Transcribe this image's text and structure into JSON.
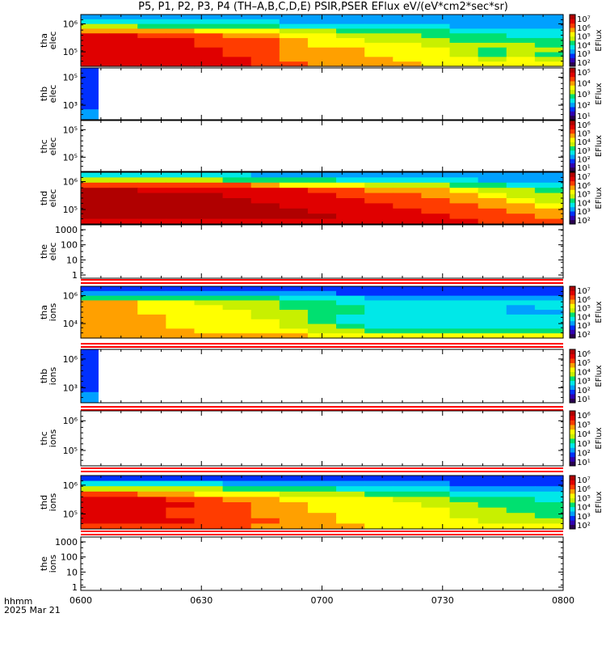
{
  "title": "P5, P1, P2, P3, P4 (TH–A,B,C,D,E) PSIR,PSER EFlux eV/(eV*cm2*sec*sr)",
  "colorbar_unit": "EFlux",
  "footer": {
    "line1": "hhmm",
    "line2": "2025 Mar 21"
  },
  "chart_data": {
    "type": "heatmap",
    "x_axis": {
      "ticks": [
        "0600",
        "0630",
        "0700",
        "0730",
        "0800"
      ],
      "range_minutes": [
        0,
        120
      ]
    },
    "colormap": [
      "#2a0050",
      "#3000b0",
      "#0030ff",
      "#00a0ff",
      "#00e8e8",
      "#00e070",
      "#c8f000",
      "#ffff00",
      "#ffa000",
      "#ff3c00",
      "#e00000",
      "#b00000"
    ],
    "panels": [
      {
        "label": "thb\nelec",
        "ylabel_lines": [
          "thb",
          "elec"
        ],
        "yticks": [
          "10⁵",
          "10³"
        ],
        "cbar_ticks": [
          "10⁵",
          "10⁴",
          "10³",
          "10²",
          "10¹"
        ]
      },
      {
        "label": "thc\nelec",
        "ylabel_lines": [
          "thc",
          "elec"
        ],
        "yticks": [
          "10⁵",
          "10⁵"
        ],
        "cbar_ticks": [
          "10⁶",
          "10⁵",
          "10⁴",
          "10³",
          "10²",
          "10¹"
        ]
      },
      {
        "label": "thd\nelec",
        "ylabel_lines": [
          "thd",
          "elec"
        ],
        "yticks": [
          "10⁶",
          "10⁵"
        ],
        "cbar_ticks": [
          "10⁷",
          "10⁶",
          "10⁵",
          "10⁴",
          "10³",
          "10²"
        ]
      },
      {
        "label": "the\nelec",
        "ylabel_lines": [
          "the",
          "elec"
        ],
        "yticks": [
          "1000",
          "100",
          "10",
          "1"
        ],
        "cbar_ticks": []
      },
      {
        "label": "tha\nions",
        "ylabel_lines": [
          "tha",
          "ions"
        ],
        "yticks": [
          "10⁶",
          "10⁴"
        ],
        "cbar_ticks": [
          "10⁷",
          "10⁶",
          "10⁵",
          "10⁴",
          "10³",
          "10²"
        ]
      },
      {
        "label": "thb\nions",
        "ylabel_lines": [
          "thb",
          "ions"
        ],
        "yticks": [
          "10⁶",
          "10³"
        ],
        "cbar_ticks": [
          "10⁶",
          "10⁵",
          "10⁴",
          "10³",
          "10²",
          "10¹"
        ]
      },
      {
        "label": "thc\nions",
        "ylabel_lines": [
          "thc",
          "ions"
        ],
        "yticks": [
          "10⁶",
          "10⁵"
        ],
        "cbar_ticks": [
          "10⁶",
          "10⁵",
          "10⁴",
          "10³",
          "10²",
          "10¹"
        ]
      },
      {
        "label": "thd\nions",
        "ylabel_lines": [
          "thd",
          "ions"
        ],
        "yticks": [
          "10⁶",
          "10⁵"
        ],
        "cbar_ticks": [
          "10⁷",
          "10⁶",
          "10⁵",
          "10⁴",
          "10³",
          "10²"
        ]
      },
      {
        "label": "the\nions",
        "ylabel_lines": [
          "the",
          "ions"
        ],
        "yticks": [
          "1000",
          "100",
          "10",
          "1"
        ],
        "cbar_ticks": []
      }
    ],
    "top_panel": {
      "ylabel_lines": [
        "tha",
        "elec"
      ],
      "yticks": [
        "10⁶",
        "10⁵"
      ],
      "cbar_ticks": [
        "10⁷",
        "10⁶",
        "10⁵",
        "10⁴",
        "10³",
        "10²"
      ]
    },
    "heat_rows": {
      "tha_elec": [
        [
          3,
          3,
          3,
          3,
          3,
          3,
          3,
          3,
          3,
          3,
          3,
          3,
          3,
          3,
          3,
          3,
          3
        ],
        [
          4,
          4,
          4,
          4,
          4,
          4,
          4,
          3,
          3,
          3,
          3,
          3,
          3,
          3,
          3,
          3,
          3
        ],
        [
          6,
          6,
          5,
          5,
          5,
          5,
          5,
          4,
          4,
          4,
          4,
          4,
          4,
          3,
          3,
          3,
          3
        ],
        [
          8,
          8,
          8,
          8,
          7,
          7,
          7,
          6,
          6,
          5,
          5,
          5,
          5,
          4,
          4,
          4,
          4
        ],
        [
          10,
          10,
          9,
          9,
          9,
          8,
          8,
          7,
          7,
          6,
          6,
          6,
          5,
          5,
          5,
          4,
          4
        ],
        [
          10,
          10,
          10,
          10,
          9,
          9,
          9,
          8,
          7,
          7,
          6,
          6,
          6,
          5,
          5,
          5,
          5
        ],
        [
          10,
          10,
          10,
          10,
          9,
          9,
          9,
          8,
          7,
          7,
          7,
          7,
          6,
          6,
          6,
          6,
          5
        ],
        [
          10,
          10,
          10,
          10,
          10,
          9,
          9,
          8,
          8,
          8,
          7,
          7,
          7,
          6,
          5,
          6,
          6
        ],
        [
          10,
          10,
          10,
          10,
          10,
          9,
          9,
          8,
          8,
          8,
          7,
          7,
          7,
          6,
          5,
          6,
          5
        ],
        [
          10,
          10,
          10,
          10,
          10,
          10,
          9,
          8,
          8,
          8,
          8,
          7,
          7,
          7,
          6,
          7,
          6
        ],
        [
          10,
          10,
          10,
          10,
          10,
          10,
          9,
          9,
          8,
          8,
          8,
          8,
          7,
          7,
          7,
          7,
          7
        ]
      ],
      "thd_elec": [
        [
          4,
          4,
          4,
          4,
          4,
          4,
          3,
          3,
          3,
          3,
          3,
          3,
          3,
          3,
          3,
          3,
          3
        ],
        [
          6,
          6,
          6,
          6,
          6,
          5,
          5,
          5,
          5,
          4,
          4,
          4,
          4,
          4,
          3,
          3,
          3
        ],
        [
          9,
          9,
          9,
          9,
          9,
          9,
          8,
          7,
          7,
          7,
          6,
          6,
          6,
          5,
          5,
          4,
          4
        ],
        [
          11,
          11,
          10,
          10,
          10,
          10,
          10,
          10,
          9,
          9,
          8,
          8,
          8,
          7,
          6,
          6,
          5
        ],
        [
          11,
          11,
          11,
          11,
          11,
          10,
          10,
          10,
          10,
          9,
          9,
          9,
          8,
          8,
          7,
          6,
          6
        ],
        [
          11,
          11,
          11,
          11,
          11,
          11,
          10,
          10,
          10,
          10,
          9,
          9,
          9,
          8,
          8,
          7,
          6
        ],
        [
          11,
          11,
          11,
          11,
          11,
          11,
          11,
          10,
          10,
          10,
          10,
          9,
          9,
          9,
          8,
          8,
          7
        ],
        [
          11,
          11,
          11,
          11,
          11,
          11,
          11,
          11,
          10,
          10,
          10,
          10,
          9,
          9,
          9,
          8,
          8
        ],
        [
          11,
          11,
          11,
          11,
          11,
          11,
          11,
          11,
          11,
          10,
          10,
          10,
          10,
          9,
          9,
          9,
          8
        ],
        [
          10,
          10,
          10,
          10,
          10,
          10,
          10,
          10,
          10,
          10,
          10,
          10,
          10,
          10,
          9,
          9,
          9
        ]
      ],
      "tha_ions": [
        [
          2,
          2,
          2,
          2,
          2,
          2,
          2,
          2,
          2,
          2,
          2,
          2,
          2,
          2,
          2,
          2,
          2
        ],
        [
          3,
          3,
          3,
          3,
          3,
          3,
          3,
          3,
          3,
          2,
          2,
          2,
          2,
          2,
          2,
          2,
          2
        ],
        [
          5,
          5,
          5,
          5,
          5,
          5,
          5,
          4,
          4,
          4,
          3,
          3,
          3,
          3,
          3,
          3,
          3
        ],
        [
          8,
          8,
          7,
          7,
          6,
          6,
          6,
          5,
          5,
          4,
          4,
          4,
          4,
          4,
          4,
          4,
          4
        ],
        [
          8,
          8,
          7,
          7,
          7,
          6,
          6,
          5,
          5,
          5,
          4,
          4,
          4,
          4,
          4,
          3,
          4
        ],
        [
          8,
          8,
          7,
          7,
          7,
          7,
          6,
          6,
          5,
          5,
          4,
          4,
          4,
          4,
          4,
          3,
          3
        ],
        [
          8,
          8,
          8,
          7,
          7,
          7,
          6,
          6,
          5,
          4,
          4,
          4,
          4,
          4,
          4,
          4,
          4
        ],
        [
          8,
          8,
          8,
          7,
          7,
          7,
          7,
          6,
          5,
          4,
          4,
          4,
          4,
          4,
          4,
          4,
          4
        ],
        [
          8,
          8,
          8,
          7,
          7,
          7,
          7,
          6,
          6,
          5,
          4,
          4,
          4,
          4,
          4,
          4,
          4
        ],
        [
          8,
          8,
          8,
          8,
          7,
          7,
          7,
          7,
          6,
          6,
          5,
          5,
          5,
          5,
          5,
          5,
          5
        ],
        [
          8,
          8,
          8,
          8,
          8,
          8,
          8,
          8,
          7,
          7,
          7,
          7,
          7,
          7,
          7,
          7,
          7
        ]
      ],
      "thd_ions": [
        [
          2,
          2,
          2,
          2,
          2,
          2,
          2,
          2,
          2,
          2,
          2,
          2,
          2,
          2,
          2,
          2,
          2
        ],
        [
          4,
          4,
          4,
          4,
          4,
          3,
          3,
          3,
          3,
          3,
          3,
          3,
          3,
          2,
          2,
          2,
          2
        ],
        [
          6,
          6,
          6,
          6,
          6,
          5,
          5,
          5,
          5,
          4,
          4,
          4,
          4,
          3,
          3,
          3,
          3
        ],
        [
          9,
          9,
          8,
          8,
          7,
          7,
          7,
          6,
          6,
          6,
          5,
          5,
          5,
          4,
          4,
          4,
          4
        ],
        [
          10,
          10,
          10,
          9,
          9,
          8,
          8,
          7,
          7,
          7,
          7,
          6,
          6,
          5,
          5,
          5,
          4
        ],
        [
          10,
          10,
          10,
          10,
          9,
          9,
          8,
          8,
          7,
          7,
          7,
          7,
          6,
          6,
          5,
          5,
          5
        ],
        [
          10,
          10,
          10,
          9,
          9,
          9,
          8,
          8,
          7,
          7,
          7,
          7,
          7,
          6,
          6,
          5,
          5
        ],
        [
          10,
          10,
          10,
          9,
          9,
          9,
          8,
          8,
          8,
          7,
          7,
          7,
          7,
          6,
          6,
          6,
          5
        ],
        [
          10,
          10,
          10,
          10,
          9,
          9,
          9,
          8,
          8,
          7,
          7,
          7,
          7,
          7,
          6,
          6,
          6
        ],
        [
          9,
          9,
          9,
          9,
          9,
          9,
          8,
          8,
          8,
          8,
          7,
          7,
          7,
          7,
          7,
          7,
          7
        ]
      ]
    }
  }
}
